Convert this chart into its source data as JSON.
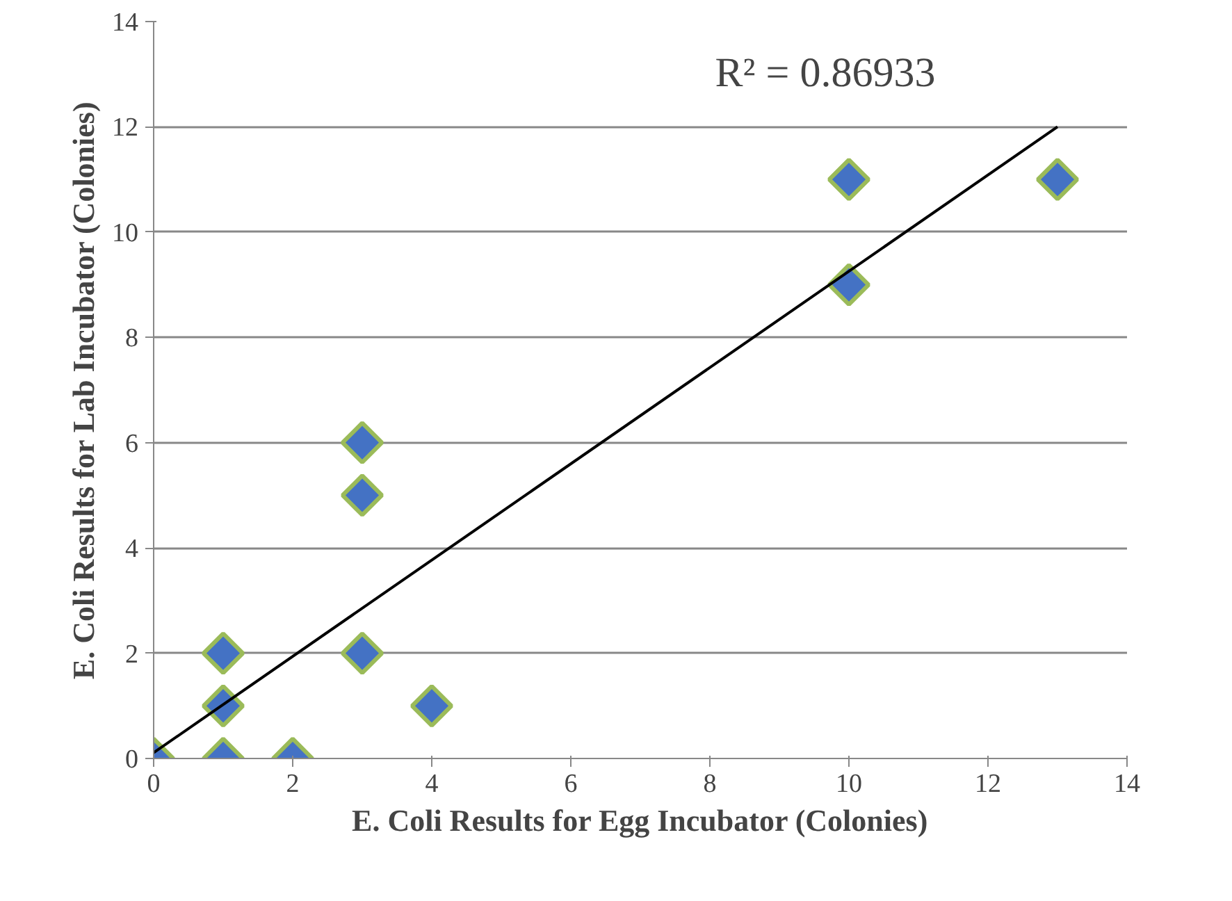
{
  "chart_data": {
    "type": "scatter",
    "xlabel": "E. Coli Results for Egg Incubator (Colonies)",
    "ylabel": "E. Coli Results for Lab Incubator (Colonies)",
    "xlim": [
      0,
      14
    ],
    "ylim": [
      0,
      14
    ],
    "xticks": [
      0,
      2,
      4,
      6,
      8,
      10,
      12,
      14
    ],
    "yticks": [
      0,
      2,
      4,
      6,
      8,
      10,
      12,
      14
    ],
    "grid": "y",
    "series": [
      {
        "color": "#4472c4",
        "marker": "diamond",
        "x": [
          0,
          1,
          1,
          1,
          2,
          3,
          3,
          3,
          4,
          10,
          10,
          13
        ],
        "values": [
          0,
          2,
          1,
          0,
          0,
          6,
          5,
          2,
          1,
          11,
          9,
          11
        ]
      },
      {
        "type": "line",
        "color": "#000000",
        "x": [
          0,
          13
        ],
        "values": [
          0.11,
          12.0
        ]
      }
    ],
    "annotations": [
      "R² = 0.86933"
    ]
  }
}
